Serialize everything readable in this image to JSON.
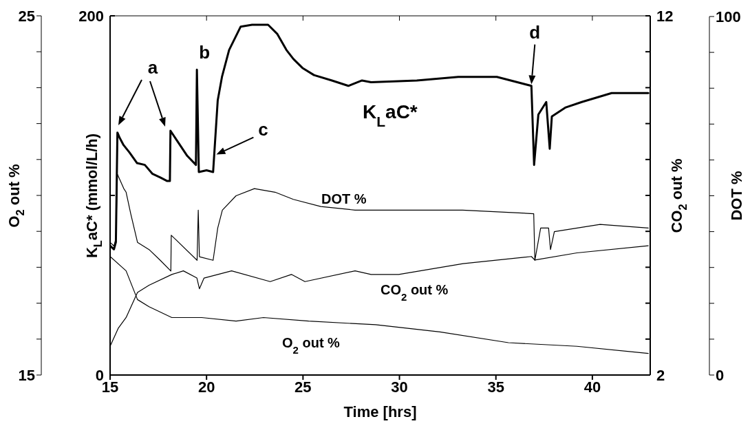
{
  "chart_data": [
    {
      "type": "line",
      "xlabel": "Time [hrs]",
      "ylabel": "K$_{L}$aC* (mmol/L/h)",
      "y2label": "CO$_{2}$ out %",
      "y3label": "O$_{2}$ out %",
      "xlim": [
        15,
        43
      ],
      "xticks": [
        15,
        20,
        25,
        30,
        35,
        40
      ],
      "ylim": [
        0,
        200
      ],
      "yticks": [
        0,
        {
          "value": 100,
          "label": null
        },
        200
      ],
      "y2lim": [
        2,
        12
      ],
      "y2ticks": [
        2,
        {
          "value": 3,
          "label": null
        },
        {
          "value": 4,
          "label": null
        },
        {
          "value": 5,
          "label": null
        },
        {
          "value": 6,
          "label": null
        },
        {
          "value": 7,
          "label": null
        },
        {
          "value": 8,
          "label": null
        },
        {
          "value": 9,
          "label": null
        },
        {
          "value": 10,
          "label": null
        },
        {
          "value": 11,
          "label": null
        },
        12
      ],
      "y3lim": [
        15,
        25
      ],
      "y3ticks": [
        15,
        {
          "value": 16,
          "label": null
        },
        {
          "value": 17,
          "label": null
        },
        {
          "value": 18,
          "label": null
        },
        {
          "value": 19,
          "label": null
        },
        {
          "value": 20,
          "label": null
        },
        {
          "value": 21,
          "label": null
        },
        {
          "value": 22,
          "label": null
        },
        {
          "value": 23,
          "label": null
        },
        {
          "value": 24,
          "label": null
        },
        25
      ],
      "series": [
        {
          "name": "K$_{L}$aC*",
          "color": "#000000",
          "x": [
            15,
            15.2,
            15.3,
            15.38,
            15.5,
            15.7,
            16.0,
            16.4,
            16.8,
            17.2,
            17.6,
            17.96,
            18.1,
            18.13,
            18.5,
            19.0,
            19.45,
            19.5,
            19.6,
            20.0,
            20.34,
            20.58,
            20.8,
            21.17,
            21.77,
            22.36,
            23.19,
            23.66,
            24.14,
            24.5,
            24.97,
            25.57,
            26.5,
            27.35,
            28.06,
            28.53,
            30.9,
            33.05,
            35.05,
            36.84,
            36.98,
            37.2,
            37.61,
            37.79,
            37.9,
            38.62,
            39.45,
            41.0,
            42.9
          ],
          "values": [
            72,
            70,
            74,
            135,
            132,
            128,
            124,
            118,
            117,
            112,
            110,
            108,
            108,
            136,
            130,
            122,
            117,
            170,
            113,
            114,
            113,
            153,
            166,
            181,
            194,
            195,
            195,
            190,
            181,
            176,
            171,
            167,
            164,
            161,
            164,
            163,
            164,
            166,
            166,
            161,
            117,
            145,
            152,
            126,
            144,
            149,
            152,
            157,
            157
          ]
        },
        {
          "name": "CO$_{2}$ out %",
          "color": "#000000",
          "axis": "y2",
          "x": [
            15,
            15.42,
            15.83,
            16.42,
            17.02,
            18.2,
            18.8,
            19.5,
            19.63,
            19.87,
            21.3,
            23.3,
            24.4,
            25.1,
            27.7,
            28.53,
            29.96,
            33.3,
            36.84,
            37.02,
            39.2,
            42.9
          ],
          "values": [
            2.8,
            3.3,
            3.6,
            4.3,
            4.5,
            4.8,
            4.9,
            4.7,
            4.4,
            4.7,
            4.9,
            4.6,
            4.8,
            4.6,
            4.9,
            4.8,
            4.8,
            5.1,
            5.3,
            5.2,
            5.4,
            5.6
          ]
        },
        {
          "name": "O$_{2}$ out %",
          "color": "#000000",
          "axis": "y3",
          "x": [
            15,
            15.83,
            16.42,
            17.02,
            18.2,
            19.75,
            21.53,
            22.95,
            25.3,
            28.77,
            32.1,
            35.65,
            39.2,
            42.9
          ],
          "values": [
            18.3,
            17.9,
            17.1,
            16.9,
            16.6,
            16.6,
            16.5,
            16.6,
            16.5,
            16.4,
            16.2,
            15.9,
            15.8,
            15.6
          ]
        }
      ],
      "annotations": [
        "a",
        {
          "text": "b",
          "x": 19.5,
          "y": 170
        },
        {
          "text": "c",
          "x": 20.4,
          "y": 123
        },
        {
          "text": "d",
          "x": 36.84,
          "y": 161
        }
      ]
    },
    {
      "type": "line",
      "ylabel": "DOT %",
      "xlim": [
        15,
        43
      ],
      "xticks": [
        15,
        20,
        25,
        30,
        35,
        40
      ],
      "tick_labels": "y",
      "ylim": [
        0,
        100
      ],
      "yticks": [
        0,
        {
          "value": 10,
          "label": null
        },
        {
          "value": 20,
          "label": null
        },
        {
          "value": 30,
          "label": null
        },
        {
          "value": 40,
          "label": null
        },
        {
          "value": 50,
          "label": null
        },
        {
          "value": 60,
          "label": null
        },
        {
          "value": 70,
          "label": null
        },
        {
          "value": 80,
          "label": null
        },
        {
          "value": 90,
          "label": null
        },
        100
      ],
      "series": [
        {
          "name": "DOT %",
          "color": "#000000",
          "x": [
            15,
            15.2,
            15.3,
            15.38,
            15.71,
            15.83,
            16.07,
            16.42,
            17.02,
            17.6,
            18.15,
            18.17,
            19.51,
            19.57,
            19.63,
            20.34,
            20.58,
            20.82,
            21.53,
            22.48,
            23.55,
            24.5,
            25.92,
            27.7,
            28.53,
            33.27,
            36.96,
            37.02,
            37.32,
            37.73,
            37.83,
            38.03,
            40.4,
            42.9
          ],
          "values": [
            37,
            36,
            38,
            56,
            52,
            51,
            45,
            37,
            35,
            32,
            29,
            39,
            32,
            46,
            33,
            32,
            41,
            46,
            50,
            52,
            51,
            49,
            47,
            46,
            46,
            46,
            45,
            32,
            41,
            41,
            35,
            40,
            42,
            41
          ]
        }
      ]
    }
  ]
}
